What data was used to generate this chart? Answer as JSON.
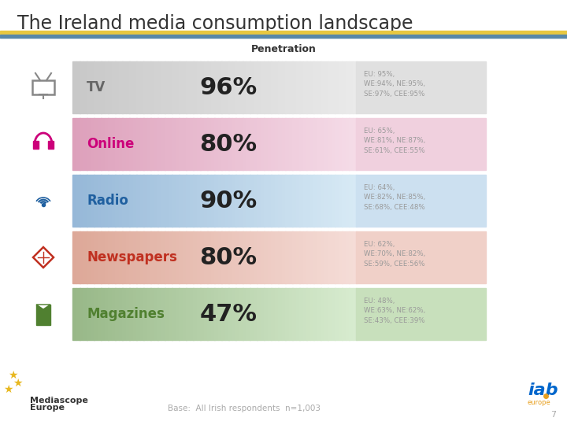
{
  "title": "The Ireland media consumption landscape",
  "subtitle": "Penetration",
  "footer": "Base:  All Irish respondents  n=1,003",
  "page_number": "7",
  "rows": [
    {
      "label": "TV",
      "value": "96%",
      "eu_text": "EU: 95%,\nWE:94%, NE:95%,\nSE:97%, CEE:95%",
      "label_color": "#666666",
      "bg_color_left": "#c8c8c8",
      "bg_color_right": "#eaeaea",
      "right_bg": "#e0e0e0",
      "icon_color": "#888888"
    },
    {
      "label": "Online",
      "value": "80%",
      "eu_text": "EU: 65%,\nWE:81%, NE:87%,\nSE:61%, CEE:55%",
      "label_color": "#cc007a",
      "bg_color_left": "#dda0bb",
      "bg_color_right": "#f5dce8",
      "right_bg": "#f0d0de",
      "icon_color": "#cc007a"
    },
    {
      "label": "Radio",
      "value": "90%",
      "eu_text": "EU: 64%,\nWE:82%, NE:85%,\nSE:68%, CEE:48%",
      "label_color": "#2060a0",
      "bg_color_left": "#96b8d8",
      "bg_color_right": "#d8eaf5",
      "right_bg": "#cce0f0",
      "icon_color": "#2060a0"
    },
    {
      "label": "Newspapers",
      "value": "80%",
      "eu_text": "EU: 62%,\nWE:70%, NE:82%,\nSE:59%, CEE:56%",
      "label_color": "#c03020",
      "bg_color_left": "#dda898",
      "bg_color_right": "#f5ddd8",
      "right_bg": "#f0d0c8",
      "icon_color": "#c03020"
    },
    {
      "label": "Magazines",
      "value": "47%",
      "eu_text": "EU: 48%,\nWE:63%, NE:62%,\nSE:43%, CEE:39%",
      "label_color": "#508030",
      "bg_color_left": "#98b888",
      "bg_color_right": "#d8ecd0",
      "right_bg": "#c8e0bc",
      "icon_color": "#508030"
    }
  ],
  "title_color": "#333333",
  "stripe1_color": "#e8c840",
  "stripe2_color": "#5888a8",
  "bg_color": "#ffffff"
}
